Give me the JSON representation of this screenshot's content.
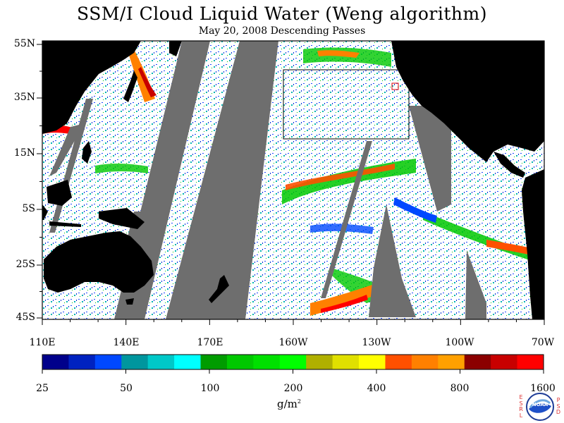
{
  "title": "SSM/I Cloud Liquid Water (Weng algorithm)",
  "subtitle": "May 20, 2008  Descending Passes",
  "map": {
    "lat_labels": [
      "55N",
      "35N",
      "15N",
      "5S",
      "25S",
      "45S"
    ],
    "lon_labels": [
      "110E",
      "140E",
      "170E",
      "160W",
      "130W",
      "100W",
      "70W"
    ],
    "colors": {
      "land": "#000000",
      "no_data": "#6e6e6e",
      "ocean_clear": "#ffffff",
      "frame": "#000000"
    }
  },
  "colorbar": {
    "tick_labels": [
      "25",
      "50",
      "100",
      "200",
      "400",
      "800",
      "1600"
    ],
    "units_main": "g/m",
    "units_sup": "2",
    "colors": [
      "#00008b",
      "#0022c0",
      "#0048ff",
      "#00969e",
      "#00c8c8",
      "#00ffff",
      "#009c00",
      "#00c800",
      "#00e000",
      "#00ff00",
      "#b0b000",
      "#e0e000",
      "#ffff00",
      "#ff5000",
      "#ff8000",
      "#ffa000",
      "#8b0000",
      "#c80000",
      "#ff0000"
    ]
  },
  "logo": {
    "left_letters": "ESRL",
    "right_letters": "PSD",
    "center_text": "NOAA"
  }
}
